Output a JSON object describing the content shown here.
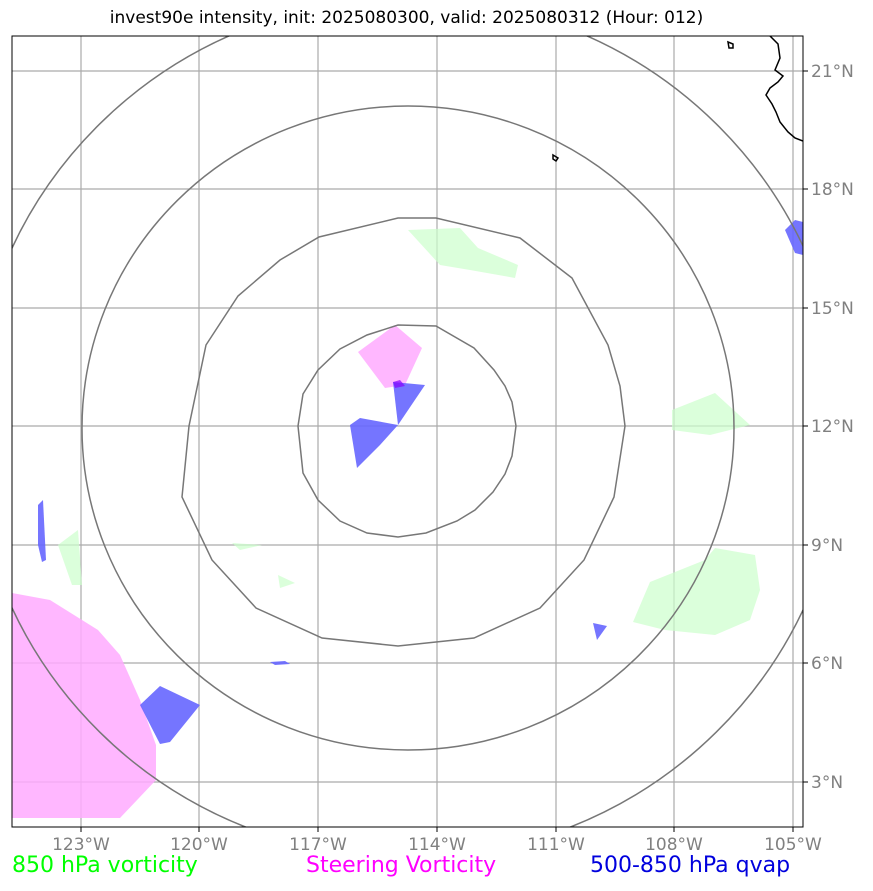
{
  "title": "invest90e intensity, init: 2025080300, valid: 2025080312 (Hour: 012)",
  "axes": {
    "lon_ticks": [
      "123°W",
      "120°W",
      "117°W",
      "114°W",
      "111°W",
      "108°W",
      "105°W"
    ],
    "lat_ticks": [
      "21°N",
      "18°N",
      "15°N",
      "12°N",
      "9°N",
      "6°N",
      "3°N"
    ]
  },
  "legend": [
    {
      "label": "850 hPa vorticity",
      "color": "#00ff00"
    },
    {
      "label": "Steering Vorticity",
      "color": "#ff00ff"
    },
    {
      "label": "500-850 hPa qvap",
      "color": "#0000dd"
    }
  ],
  "colors": {
    "vorticity_850_fill": "#ccffcc",
    "steering_vorticity_fill": "#ffaaff",
    "qvap_fill": "#6666ff",
    "range_rings": "#777777",
    "gridlines": "#aaaaaa",
    "coastline": "#000000"
  }
}
